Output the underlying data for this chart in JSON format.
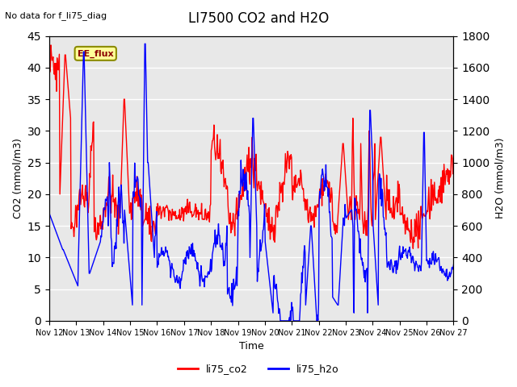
{
  "title": "LI7500 CO2 and H2O",
  "top_left_text": "No data for f_li75_diag",
  "xlabel": "Time",
  "ylabel_left": "CO2 (mmol/m3)",
  "ylabel_right": "H2O (mmol/m3)",
  "ylim_left": [
    0,
    45
  ],
  "ylim_right": [
    0,
    1800
  ],
  "yticks_left": [
    0,
    5,
    10,
    15,
    20,
    25,
    30,
    35,
    40,
    45
  ],
  "yticks_right": [
    0,
    200,
    400,
    600,
    800,
    1000,
    1200,
    1400,
    1600,
    1800
  ],
  "xtick_labels": [
    "Nov 12",
    "Nov 13",
    "Nov 14",
    "Nov 15",
    "Nov 16",
    "Nov 17",
    "Nov 18",
    "Nov 19",
    "Nov 20",
    "Nov 21",
    "Nov 22",
    "Nov 23",
    "Nov 24",
    "Nov 25",
    "Nov 26",
    "Nov 27"
  ],
  "co2_color": "#FF0000",
  "h2o_color": "#0000FF",
  "background_color": "#FFFFFF",
  "plot_bg_color": "#E8E8E8",
  "grid_color": "#FFFFFF",
  "annotation_text": "EE_flux",
  "annotation_bg": "#FFFF99",
  "annotation_border": "#8B8B00",
  "legend_co2": "li75_co2",
  "legend_h2o": "li75_h2o",
  "line_width": 1.0
}
